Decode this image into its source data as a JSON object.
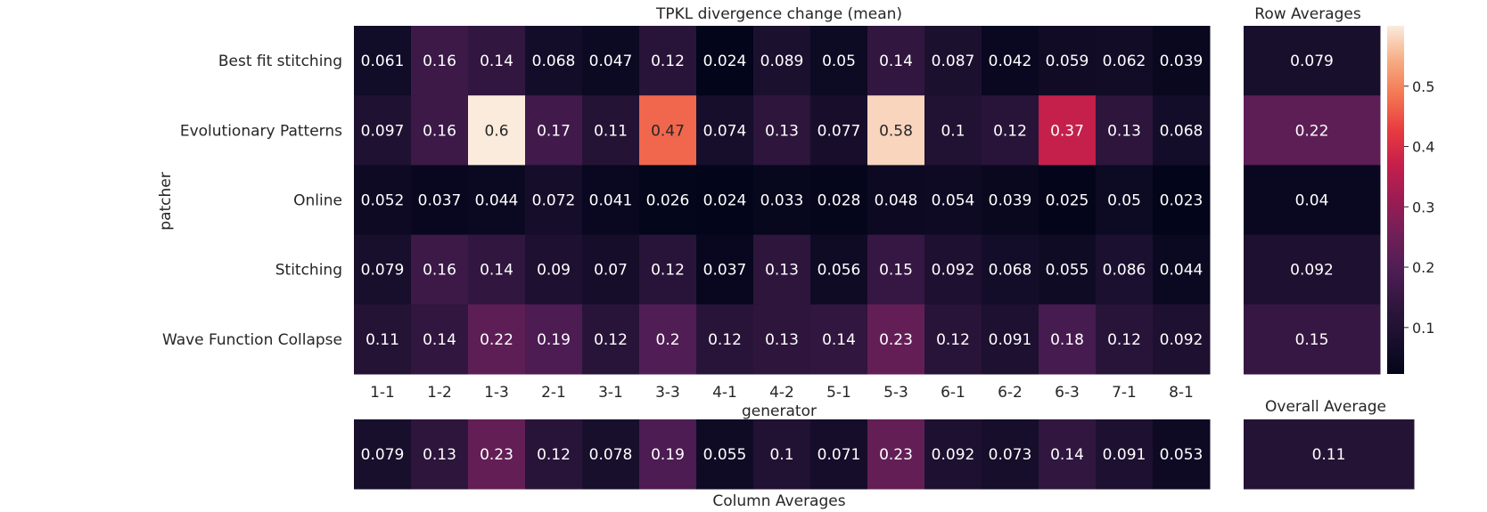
{
  "chart_data": {
    "type": "heatmap",
    "title": "TPKL divergence change (mean)",
    "xlabel": "generator",
    "ylabel": "patcher",
    "columns": [
      "1-1",
      "1-2",
      "1-3",
      "2-1",
      "3-1",
      "3-3",
      "4-1",
      "4-2",
      "5-1",
      "5-3",
      "6-1",
      "6-2",
      "6-3",
      "7-1",
      "8-1"
    ],
    "rows": [
      "Best fit stitching",
      "Evolutionary Patterns",
      "Online",
      "Stitching",
      "Wave Function Collapse"
    ],
    "values": [
      [
        "0.061",
        "0.16",
        "0.14",
        "0.068",
        "0.047",
        "0.12",
        "0.024",
        "0.089",
        "0.05",
        "0.14",
        "0.087",
        "0.042",
        "0.059",
        "0.062",
        "0.039"
      ],
      [
        "0.097",
        "0.16",
        "0.6",
        "0.17",
        "0.11",
        "0.47",
        "0.074",
        "0.13",
        "0.077",
        "0.58",
        "0.1",
        "0.12",
        "0.37",
        "0.13",
        "0.068"
      ],
      [
        "0.052",
        "0.037",
        "0.044",
        "0.072",
        "0.041",
        "0.026",
        "0.024",
        "0.033",
        "0.028",
        "0.048",
        "0.054",
        "0.039",
        "0.025",
        "0.05",
        "0.023"
      ],
      [
        "0.079",
        "0.16",
        "0.14",
        "0.09",
        "0.07",
        "0.12",
        "0.037",
        "0.13",
        "0.056",
        "0.15",
        "0.092",
        "0.068",
        "0.055",
        "0.086",
        "0.044"
      ],
      [
        "0.11",
        "0.14",
        "0.22",
        "0.19",
        "0.12",
        "0.2",
        "0.12",
        "0.13",
        "0.14",
        "0.23",
        "0.12",
        "0.091",
        "0.18",
        "0.12",
        "0.092"
      ]
    ],
    "row_averages": {
      "title": "Row Averages",
      "values": [
        "0.079",
        "0.22",
        "0.04",
        "0.092",
        "0.15"
      ]
    },
    "column_averages": {
      "title": "Column Averages",
      "values": [
        "0.079",
        "0.13",
        "0.23",
        "0.12",
        "0.078",
        "0.19",
        "0.055",
        "0.1",
        "0.071",
        "0.23",
        "0.092",
        "0.073",
        "0.14",
        "0.091",
        "0.053"
      ]
    },
    "overall_average": {
      "title": "Overall Average",
      "value": "0.11"
    },
    "colorbar": {
      "colormap": "rocket",
      "range": [
        0.023,
        0.6
      ],
      "ticks": [
        "0.1",
        "0.2",
        "0.3",
        "0.4",
        "0.5"
      ]
    }
  }
}
